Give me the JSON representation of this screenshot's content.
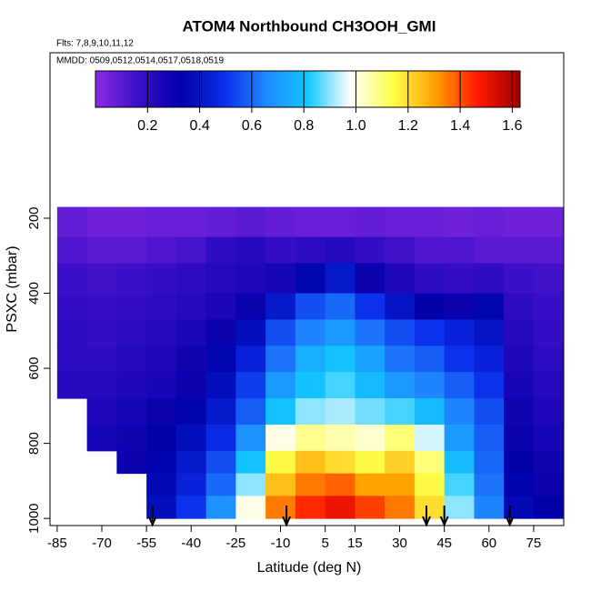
{
  "chart_data": {
    "type": "heatmap",
    "title": "ATOM4 Northbound CH3OOH_GMI",
    "subtitle": "Flts: 7,8,9,10,11,12",
    "annotation": "MMDD: 0509,0512,0514,0517,0518,0519",
    "x_label": "Latitude (deg N)",
    "y_label": "PSXC (mbar)",
    "xlim": [
      -87.4,
      85.1
    ],
    "xticks": [
      -85,
      -70,
      -55,
      -40,
      -25,
      -10,
      5,
      15,
      30,
      45,
      60,
      75
    ],
    "ylim": [
      1019,
      -241
    ],
    "yticks": [
      200,
      400,
      600,
      800,
      1000
    ],
    "x_bins": [
      -85,
      -75,
      -65,
      -55,
      -45,
      -35,
      -25,
      -15,
      -5,
      5,
      15,
      25,
      35,
      45,
      55,
      65,
      75,
      85
    ],
    "y_bins": [
      170,
      250,
      320,
      400,
      470,
      540,
      610,
      680,
      750,
      820,
      880,
      940,
      1000
    ],
    "z": [
      [
        0.08,
        0.06,
        0.06,
        0.07,
        0.07,
        0.08,
        0.1,
        0.08,
        0.07,
        0.07,
        0.08,
        0.07,
        0.07,
        0.06,
        0.07,
        0.06,
        0.06
      ],
      [
        0.12,
        0.1,
        0.1,
        0.12,
        0.14,
        0.2,
        0.22,
        0.18,
        0.2,
        0.22,
        0.18,
        0.15,
        0.12,
        0.12,
        0.1,
        0.1,
        0.1
      ],
      [
        0.16,
        0.15,
        0.16,
        0.18,
        0.2,
        0.22,
        0.24,
        0.26,
        0.35,
        0.42,
        0.3,
        0.24,
        0.2,
        0.18,
        0.2,
        0.16,
        0.15
      ],
      [
        0.18,
        0.17,
        0.18,
        0.2,
        0.22,
        0.25,
        0.3,
        0.42,
        0.55,
        0.6,
        0.5,
        0.4,
        0.32,
        0.3,
        0.35,
        0.2,
        0.17
      ],
      [
        0.2,
        0.18,
        0.2,
        0.22,
        0.25,
        0.3,
        0.38,
        0.55,
        0.65,
        0.7,
        0.62,
        0.55,
        0.5,
        0.45,
        0.4,
        0.22,
        0.18
      ],
      [
        0.2,
        0.2,
        0.22,
        0.24,
        0.28,
        0.35,
        0.45,
        0.62,
        0.75,
        0.8,
        0.72,
        0.62,
        0.58,
        0.5,
        0.45,
        0.24,
        0.2
      ],
      [
        0.22,
        0.22,
        0.24,
        0.26,
        0.3,
        0.38,
        0.52,
        0.7,
        0.8,
        0.85,
        0.78,
        0.7,
        0.65,
        0.58,
        0.5,
        0.26,
        0.22
      ],
      [
        null,
        0.24,
        0.26,
        0.3,
        0.34,
        0.42,
        0.58,
        0.8,
        0.9,
        0.92,
        0.88,
        0.85,
        0.78,
        0.65,
        0.55,
        0.28,
        0.24
      ],
      [
        null,
        0.26,
        0.28,
        0.32,
        0.38,
        0.48,
        0.68,
        1.0,
        1.08,
        1.05,
        1.02,
        1.1,
        0.95,
        0.7,
        0.58,
        0.3,
        0.26
      ],
      [
        null,
        null,
        0.3,
        0.34,
        0.42,
        0.55,
        0.8,
        1.15,
        1.25,
        1.2,
        1.15,
        1.22,
        1.1,
        0.78,
        0.6,
        0.32,
        0.28
      ],
      [
        null,
        null,
        null,
        0.36,
        0.45,
        0.6,
        0.9,
        1.25,
        1.35,
        1.38,
        1.3,
        1.3,
        1.15,
        0.85,
        0.62,
        0.34,
        0.3
      ],
      [
        null,
        null,
        null,
        0.38,
        0.5,
        0.68,
        1.0,
        1.35,
        1.45,
        1.5,
        1.42,
        1.35,
        1.2,
        0.9,
        0.65,
        0.36,
        0.32
      ]
    ],
    "colors": [
      "#8c2be2",
      "#3a0fc8",
      "#0000a8",
      "#0a2ce8",
      "#1f86ff",
      "#12c8ff",
      "#ffffff",
      "#ffff4a",
      "#ffa000",
      "#ff1a00",
      "#9a0000"
    ],
    "clim": [
      0,
      1.63
    ],
    "cticks": [
      0.2,
      0.4,
      0.6,
      0.8,
      {
        "value": 1,
        "label": "1.0"
      },
      1.2,
      1.4,
      1.6
    ],
    "arrows": [
      -53,
      -8,
      39,
      45,
      67
    ]
  }
}
